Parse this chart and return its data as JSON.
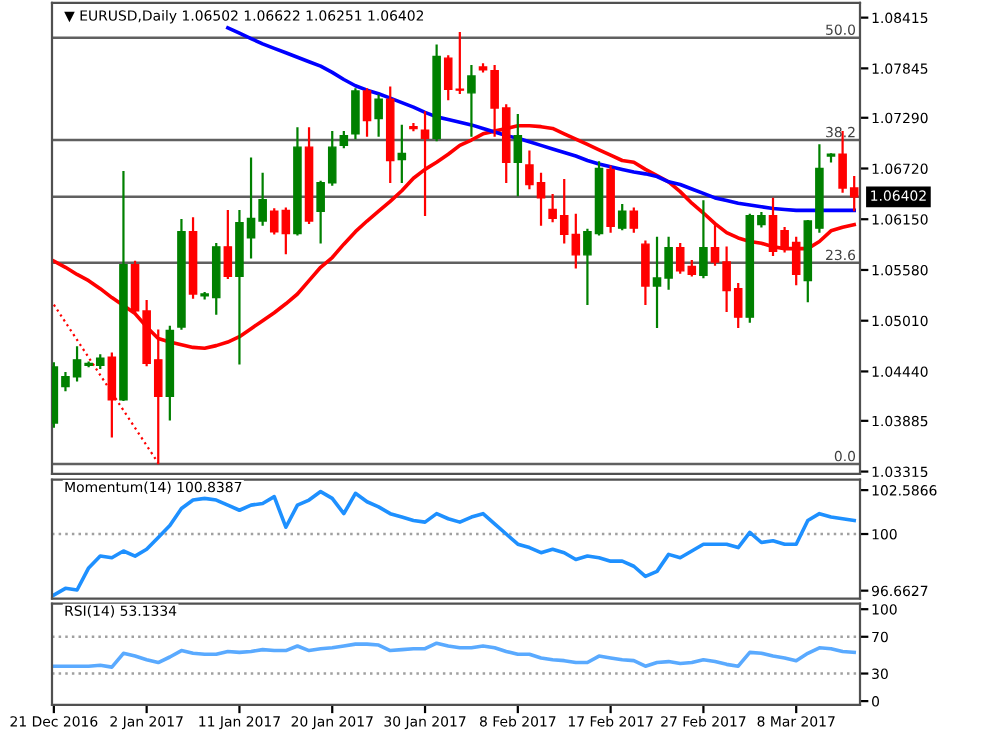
{
  "chart_data": [
    {
      "type": "candlestick",
      "title": "▼ EURUSD,Daily 1.06502 1.06622 1.06251 1.06402",
      "categories": [
        null,
        null,
        null,
        null,
        null,
        null,
        null,
        null,
        null,
        null,
        null,
        null,
        null,
        null,
        null,
        null,
        null,
        null,
        null,
        null,
        null,
        null,
        null,
        null,
        null,
        null,
        null,
        null,
        null,
        null,
        null,
        null,
        null,
        null,
        null,
        null,
        null,
        null,
        null,
        null,
        null,
        null,
        null,
        null,
        null,
        null,
        null,
        null,
        null,
        null,
        null,
        null,
        null,
        null,
        null,
        null,
        null,
        null,
        null,
        null,
        null,
        null,
        null,
        null,
        null,
        null,
        null,
        null,
        null,
        null
      ],
      "ohlc": [
        [
          1.0386,
          1.0453,
          1.0382,
          1.0449
        ],
        [
          1.0427,
          1.0442,
          1.0423,
          1.0438
        ],
        [
          1.0438,
          1.0471,
          1.0434,
          1.0457
        ],
        [
          1.0451,
          1.0454,
          1.045,
          1.0453
        ],
        [
          1.0451,
          1.0462,
          1.0448,
          1.0459
        ],
        [
          1.046,
          1.0464,
          1.0371,
          1.0412
        ],
        [
          1.0412,
          1.0668,
          1.0412,
          1.0564
        ],
        [
          1.0564,
          1.0567,
          1.051,
          1.0512
        ],
        [
          1.0512,
          1.0523,
          1.0451,
          1.0453
        ],
        [
          1.0457,
          1.049,
          1.0341,
          1.0416
        ],
        [
          1.0416,
          1.0494,
          1.039,
          1.049
        ],
        [
          1.0494,
          1.0614,
          1.0492,
          1.0601
        ],
        [
          1.0601,
          1.0616,
          1.0527,
          1.0531
        ],
        [
          1.0529,
          1.0532,
          1.0526,
          1.0531
        ],
        [
          1.0527,
          1.0587,
          1.0509,
          1.0584
        ],
        [
          1.0584,
          1.0624,
          1.0549,
          1.0551
        ],
        [
          1.0551,
          1.0624,
          1.0453,
          1.0611
        ],
        [
          1.0594,
          1.0683,
          1.0572,
          1.0616
        ],
        [
          1.0613,
          1.0666,
          1.0609,
          1.0637
        ],
        [
          1.0624,
          1.0626,
          1.0599,
          1.0601
        ],
        [
          1.0625,
          1.0627,
          1.0577,
          1.0599
        ],
        [
          1.0599,
          1.0717,
          1.0598,
          1.0696
        ],
        [
          1.0696,
          1.0717,
          1.0611,
          1.0613
        ],
        [
          1.0624,
          1.0657,
          1.0589,
          1.0656
        ],
        [
          1.0656,
          1.0713,
          1.0654,
          1.0696
        ],
        [
          1.0698,
          1.0713,
          1.0696,
          1.0709
        ],
        [
          1.0711,
          1.0761,
          1.0706,
          1.0759
        ],
        [
          1.0759,
          1.0761,
          1.0709,
          1.0726
        ],
        [
          1.0728,
          1.0754,
          1.0709,
          1.075
        ],
        [
          1.075,
          1.0763,
          1.0657,
          1.0681
        ],
        [
          1.0682,
          1.072,
          1.0657,
          1.0689
        ],
        [
          1.0719,
          1.0722,
          1.0715,
          1.0717
        ],
        [
          1.0715,
          1.0735,
          1.062,
          1.0706
        ],
        [
          1.0706,
          1.081,
          1.0704,
          1.0798
        ],
        [
          1.0796,
          1.0798,
          1.075,
          1.0761
        ],
        [
          1.0761,
          1.0824,
          1.0757,
          1.076
        ],
        [
          1.0757,
          1.0787,
          1.0709,
          1.0776
        ],
        [
          1.0786,
          1.0789,
          1.0781,
          1.0783
        ],
        [
          1.0782,
          1.0787,
          1.0709,
          1.074
        ],
        [
          1.074,
          1.0743,
          1.0657,
          1.0679
        ],
        [
          1.0679,
          1.0732,
          1.0642,
          1.0709
        ],
        [
          1.0676,
          1.0691,
          1.065,
          1.0654
        ],
        [
          1.0656,
          1.0666,
          1.0609,
          1.0639
        ],
        [
          1.0626,
          1.0642,
          1.0613,
          1.0616
        ],
        [
          1.0619,
          1.0659,
          1.0589,
          1.0598
        ],
        [
          1.0598,
          1.062,
          1.0561,
          1.0575
        ],
        [
          1.0575,
          1.0603,
          1.052,
          1.0601
        ],
        [
          1.0599,
          1.0679,
          1.0598,
          1.0672
        ],
        [
          1.0671,
          1.0674,
          1.0601,
          1.0607
        ],
        [
          1.0605,
          1.0631,
          1.0604,
          1.0624
        ],
        [
          1.0624,
          1.0627,
          1.0601,
          1.0605
        ],
        [
          1.0587,
          1.059,
          1.052,
          1.054
        ],
        [
          1.054,
          1.0594,
          1.0494,
          1.0549
        ],
        [
          1.0549,
          1.0594,
          1.0537,
          1.0583
        ],
        [
          1.0583,
          1.0587,
          1.0555,
          1.0557
        ],
        [
          1.0562,
          1.0568,
          1.0552,
          1.0553
        ],
        [
          1.0552,
          1.0635,
          1.055,
          1.0583
        ],
        [
          1.0583,
          1.0609,
          1.0564,
          1.0567
        ],
        [
          1.0567,
          1.0583,
          1.0512,
          1.0535
        ],
        [
          1.0537,
          1.0542,
          1.0494,
          1.0505
        ],
        [
          1.0505,
          1.062,
          1.05,
          1.0619
        ],
        [
          1.0609,
          1.0622,
          1.0607,
          1.0619
        ],
        [
          1.0619,
          1.0638,
          1.0575,
          1.0579
        ],
        [
          1.0602,
          1.0605,
          1.0579,
          1.0582
        ],
        [
          1.0589,
          1.0594,
          1.0542,
          1.0553
        ],
        [
          1.0546,
          1.0613,
          1.0523,
          1.0613
        ],
        [
          1.0605,
          1.0698,
          1.0601,
          1.0672
        ],
        [
          1.0686,
          1.0688,
          1.068,
          1.0688
        ],
        [
          1.0688,
          1.0713,
          1.0646,
          1.065
        ],
        [
          1.06502,
          1.06622,
          1.06251,
          1.06402
        ]
      ],
      "colors": [
        "#008000",
        "#008000",
        "#008000",
        "#008000",
        "#008000",
        "#ff0000",
        "#008000",
        "#ff0000",
        "#ff0000",
        "#ff0000",
        "#008000",
        "#008000",
        "#ff0000",
        "#008000",
        "#008000",
        "#ff0000",
        "#008000",
        "#008000",
        "#008000",
        "#ff0000",
        "#ff0000",
        "#008000",
        "#ff0000",
        "#008000",
        "#008000",
        "#008000",
        "#008000",
        "#ff0000",
        "#008000",
        "#ff0000",
        "#008000",
        "#ff0000",
        "#ff0000",
        "#008000",
        "#ff0000",
        "#ff0000",
        "#008000",
        "#ff0000",
        "#ff0000",
        "#ff0000",
        "#008000",
        "#ff0000",
        "#ff0000",
        "#ff0000",
        "#ff0000",
        "#ff0000",
        "#008000",
        "#008000",
        "#ff0000",
        "#008000",
        "#ff0000",
        "#ff0000",
        "#008000",
        "#008000",
        "#ff0000",
        "#ff0000",
        "#008000",
        "#ff0000",
        "#ff0000",
        "#ff0000",
        "#008000",
        "#008000",
        "#ff0000",
        "#ff0000",
        "#ff0000",
        "#008000",
        "#008000",
        "#008000",
        "#ff0000",
        "#ff0000"
      ],
      "series": [
        {
          "type": "line",
          "color": "#ff0000",
          "values": [
            1.0568,
            1.0561,
            1.0553,
            1.0546,
            1.0537,
            1.0527,
            1.0518,
            1.0509,
            1.0494,
            1.0481,
            1.0477,
            1.0474,
            1.0471,
            1.047,
            1.0473,
            1.0477,
            1.0483,
            1.0492,
            1.0501,
            1.051,
            1.052,
            1.0531,
            1.0546,
            1.0561,
            1.0572,
            1.0587,
            1.0601,
            1.0613,
            1.0624,
            1.0635,
            1.0647,
            1.0661,
            1.0671,
            1.0679,
            1.0688,
            1.0698,
            1.0704,
            1.0711,
            1.0714,
            1.0717,
            1.072,
            1.072,
            1.0719,
            1.0717,
            1.0711,
            1.0705,
            1.0699,
            1.0693,
            1.0687,
            1.0681,
            1.0679,
            1.0671,
            1.0664,
            1.0657,
            1.0646,
            1.0633,
            1.0622,
            1.061,
            1.06,
            1.0594,
            1.059,
            1.0588,
            1.0584,
            1.0582,
            1.0582,
            1.0582,
            1.059,
            1.0602,
            1.0606,
            1.0609
          ]
        },
        {
          "type": "line",
          "color": "#0000ff",
          "values": [
            null,
            null,
            null,
            null,
            null,
            null,
            null,
            null,
            null,
            null,
            null,
            null,
            null,
            null,
            null,
            1.083,
            1.0824,
            1.0818,
            1.0812,
            1.0807,
            1.0802,
            1.0797,
            1.0792,
            1.0787,
            1.078,
            1.0772,
            1.0765,
            1.076,
            1.0756,
            1.0751,
            1.0746,
            1.0741,
            1.0735,
            1.073,
            1.0727,
            1.0724,
            1.0721,
            1.0717,
            1.0713,
            1.0709,
            1.0706,
            1.0702,
            1.0698,
            1.0694,
            1.069,
            1.0686,
            1.0681,
            1.0677,
            1.0674,
            1.0671,
            1.0668,
            1.0666,
            1.0663,
            1.0657,
            1.0654,
            1.0649,
            1.0644,
            1.0639,
            1.0636,
            1.0633,
            1.0631,
            1.0629,
            1.0627,
            1.0626,
            1.0625,
            1.0625,
            1.0625,
            1.0625,
            1.0625,
            1.0625
          ]
        },
        {
          "type": "line",
          "color": "#ff0000",
          "line_style": "dotted",
          "values": [
            1.0519,
            null,
            null,
            null,
            null,
            null,
            null,
            null,
            null,
            1.0341,
            null,
            null,
            null,
            null,
            null,
            null,
            null,
            null,
            null,
            null,
            null,
            null,
            null,
            null,
            null,
            null,
            null,
            null,
            null,
            null,
            null,
            null,
            null,
            null,
            null,
            null,
            null,
            null,
            null,
            null,
            null,
            null,
            null,
            null,
            null,
            null,
            null,
            null,
            null,
            null,
            null,
            null,
            null,
            null,
            null,
            null,
            null,
            null,
            null,
            null,
            null,
            null,
            null,
            null,
            null,
            null,
            null,
            null,
            null,
            null
          ]
        }
      ],
      "ref_lines": [
        {
          "axis": "y",
          "value": 1.0819,
          "color": "#606060"
        },
        {
          "axis": "y",
          "value": 1.0704,
          "color": "#606060"
        },
        {
          "axis": "y",
          "value": 1.0566,
          "color": "#606060"
        },
        {
          "axis": "y",
          "value": 1.034,
          "color": "#606060"
        },
        {
          "axis": "y",
          "value": 1.06402,
          "label": "1.06402",
          "color": "#606060"
        }
      ],
      "annotations": [
        {
          "text": "50.0",
          "y": 1.0819
        },
        {
          "text": "38.2",
          "y": 1.0704
        },
        {
          "text": "23.6",
          "y": 1.0566
        },
        {
          "text": "0.0",
          "y": 1.034
        }
      ],
      "ylim": [
        1.0329,
        1.0858
      ],
      "yticks": [
        1.08415,
        1.07845,
        {
          "value": 1.0729,
          "label": "1.07290"
        },
        {
          "value": 1.0672,
          "label": "1.06720"
        },
        {
          "value": 1.0615,
          "label": "1.06150"
        },
        {
          "value": 1.0558,
          "label": "1.05580"
        },
        {
          "value": 1.0501,
          "label": "1.05010"
        },
        {
          "value": 1.0444,
          "label": "1.04440"
        },
        1.03885,
        1.03315
      ],
      "tick_labels": "y"
    },
    {
      "type": "line",
      "title": "Momentum(14) 100.8387",
      "categories": [
        null,
        null,
        null,
        null,
        null,
        null,
        null,
        null,
        null,
        null,
        null,
        null,
        null,
        null,
        null,
        null,
        null,
        null,
        null,
        null,
        null,
        null,
        null,
        null,
        null,
        null,
        null,
        null,
        null,
        null,
        null,
        null,
        null,
        null,
        null,
        null,
        null,
        null,
        null,
        null,
        null,
        null,
        null,
        null,
        null,
        null,
        null,
        null,
        null,
        null,
        null,
        null,
        null,
        null,
        null,
        null,
        null,
        null,
        null,
        null,
        null,
        null,
        null,
        null,
        null,
        null,
        null,
        null,
        null,
        null
      ],
      "series": [
        {
          "color": "#1e90ff",
          "values": [
            96.4,
            96.8,
            96.7,
            98.0,
            98.7,
            98.6,
            99.0,
            98.7,
            99.1,
            99.8,
            100.5,
            101.5,
            102.0,
            102.1,
            102.0,
            101.7,
            101.4,
            101.7,
            101.8,
            102.2,
            100.4,
            101.7,
            102.0,
            102.5,
            102.1,
            101.2,
            102.4,
            101.9,
            101.6,
            101.2,
            101.0,
            100.8,
            100.7,
            101.2,
            100.9,
            100.7,
            101.0,
            101.2,
            100.6,
            100.0,
            99.4,
            99.2,
            98.9,
            99.1,
            98.9,
            98.5,
            98.7,
            98.6,
            98.4,
            98.4,
            98.1,
            97.5,
            97.8,
            98.8,
            98.6,
            99.0,
            99.4,
            99.4,
            99.4,
            99.2,
            100.1,
            99.5,
            99.6,
            99.4,
            99.4,
            100.8,
            101.2,
            101.0,
            100.9,
            100.8
          ]
        }
      ],
      "ref_lines": [
        {
          "axis": "y",
          "value": 100,
          "color": "#a0a0a0",
          "line_style": "dotted"
        }
      ],
      "ylim": [
        96.2,
        103.2
      ],
      "yticks": [
        102.5866,
        100,
        96.6627
      ],
      "tick_labels": "y"
    },
    {
      "type": "line",
      "title": "RSI(14) 53.1334",
      "categories": [
        "21 Dec 2016",
        null,
        null,
        null,
        null,
        null,
        null,
        null,
        "2 Jan 2017",
        null,
        null,
        null,
        null,
        null,
        null,
        null,
        "11 Jan 2017",
        null,
        null,
        null,
        null,
        null,
        null,
        null,
        "20 Jan 2017",
        null,
        null,
        null,
        null,
        null,
        null,
        null,
        "30 Jan 2017",
        null,
        null,
        null,
        null,
        null,
        null,
        null,
        "8 Feb 2017",
        null,
        null,
        null,
        null,
        null,
        null,
        null,
        "17 Feb 2017",
        null,
        null,
        null,
        null,
        null,
        null,
        null,
        "27 Feb 2017",
        null,
        null,
        null,
        null,
        null,
        null,
        null,
        "8 Mar 2017",
        null,
        null,
        null,
        null,
        null
      ],
      "series": [
        {
          "color": "#5aaaff",
          "values": [
            38,
            38,
            38,
            38,
            39,
            37,
            52,
            49,
            45,
            42,
            48,
            55,
            52,
            51,
            51,
            54,
            53,
            54,
            56,
            55,
            55,
            60,
            55,
            57,
            58,
            60,
            62,
            62,
            61,
            55,
            56,
            57,
            57,
            63,
            60,
            58,
            58,
            60,
            58,
            54,
            51,
            51,
            47,
            45,
            44,
            42,
            42,
            49,
            47,
            45,
            44,
            38,
            42,
            43,
            41,
            42,
            45,
            43,
            40,
            38,
            53,
            52,
            49,
            47,
            44,
            52,
            58,
            57,
            54,
            53
          ]
        }
      ],
      "ref_lines": [
        {
          "axis": "y",
          "value": 70,
          "color": "#a0a0a0",
          "line_style": "dotted"
        },
        {
          "axis": "y",
          "value": 30,
          "color": "#a0a0a0",
          "line_style": "dotted"
        }
      ],
      "ylim": [
        -4,
        106
      ],
      "yticks": [
        100,
        70,
        30,
        0
      ]
    }
  ]
}
